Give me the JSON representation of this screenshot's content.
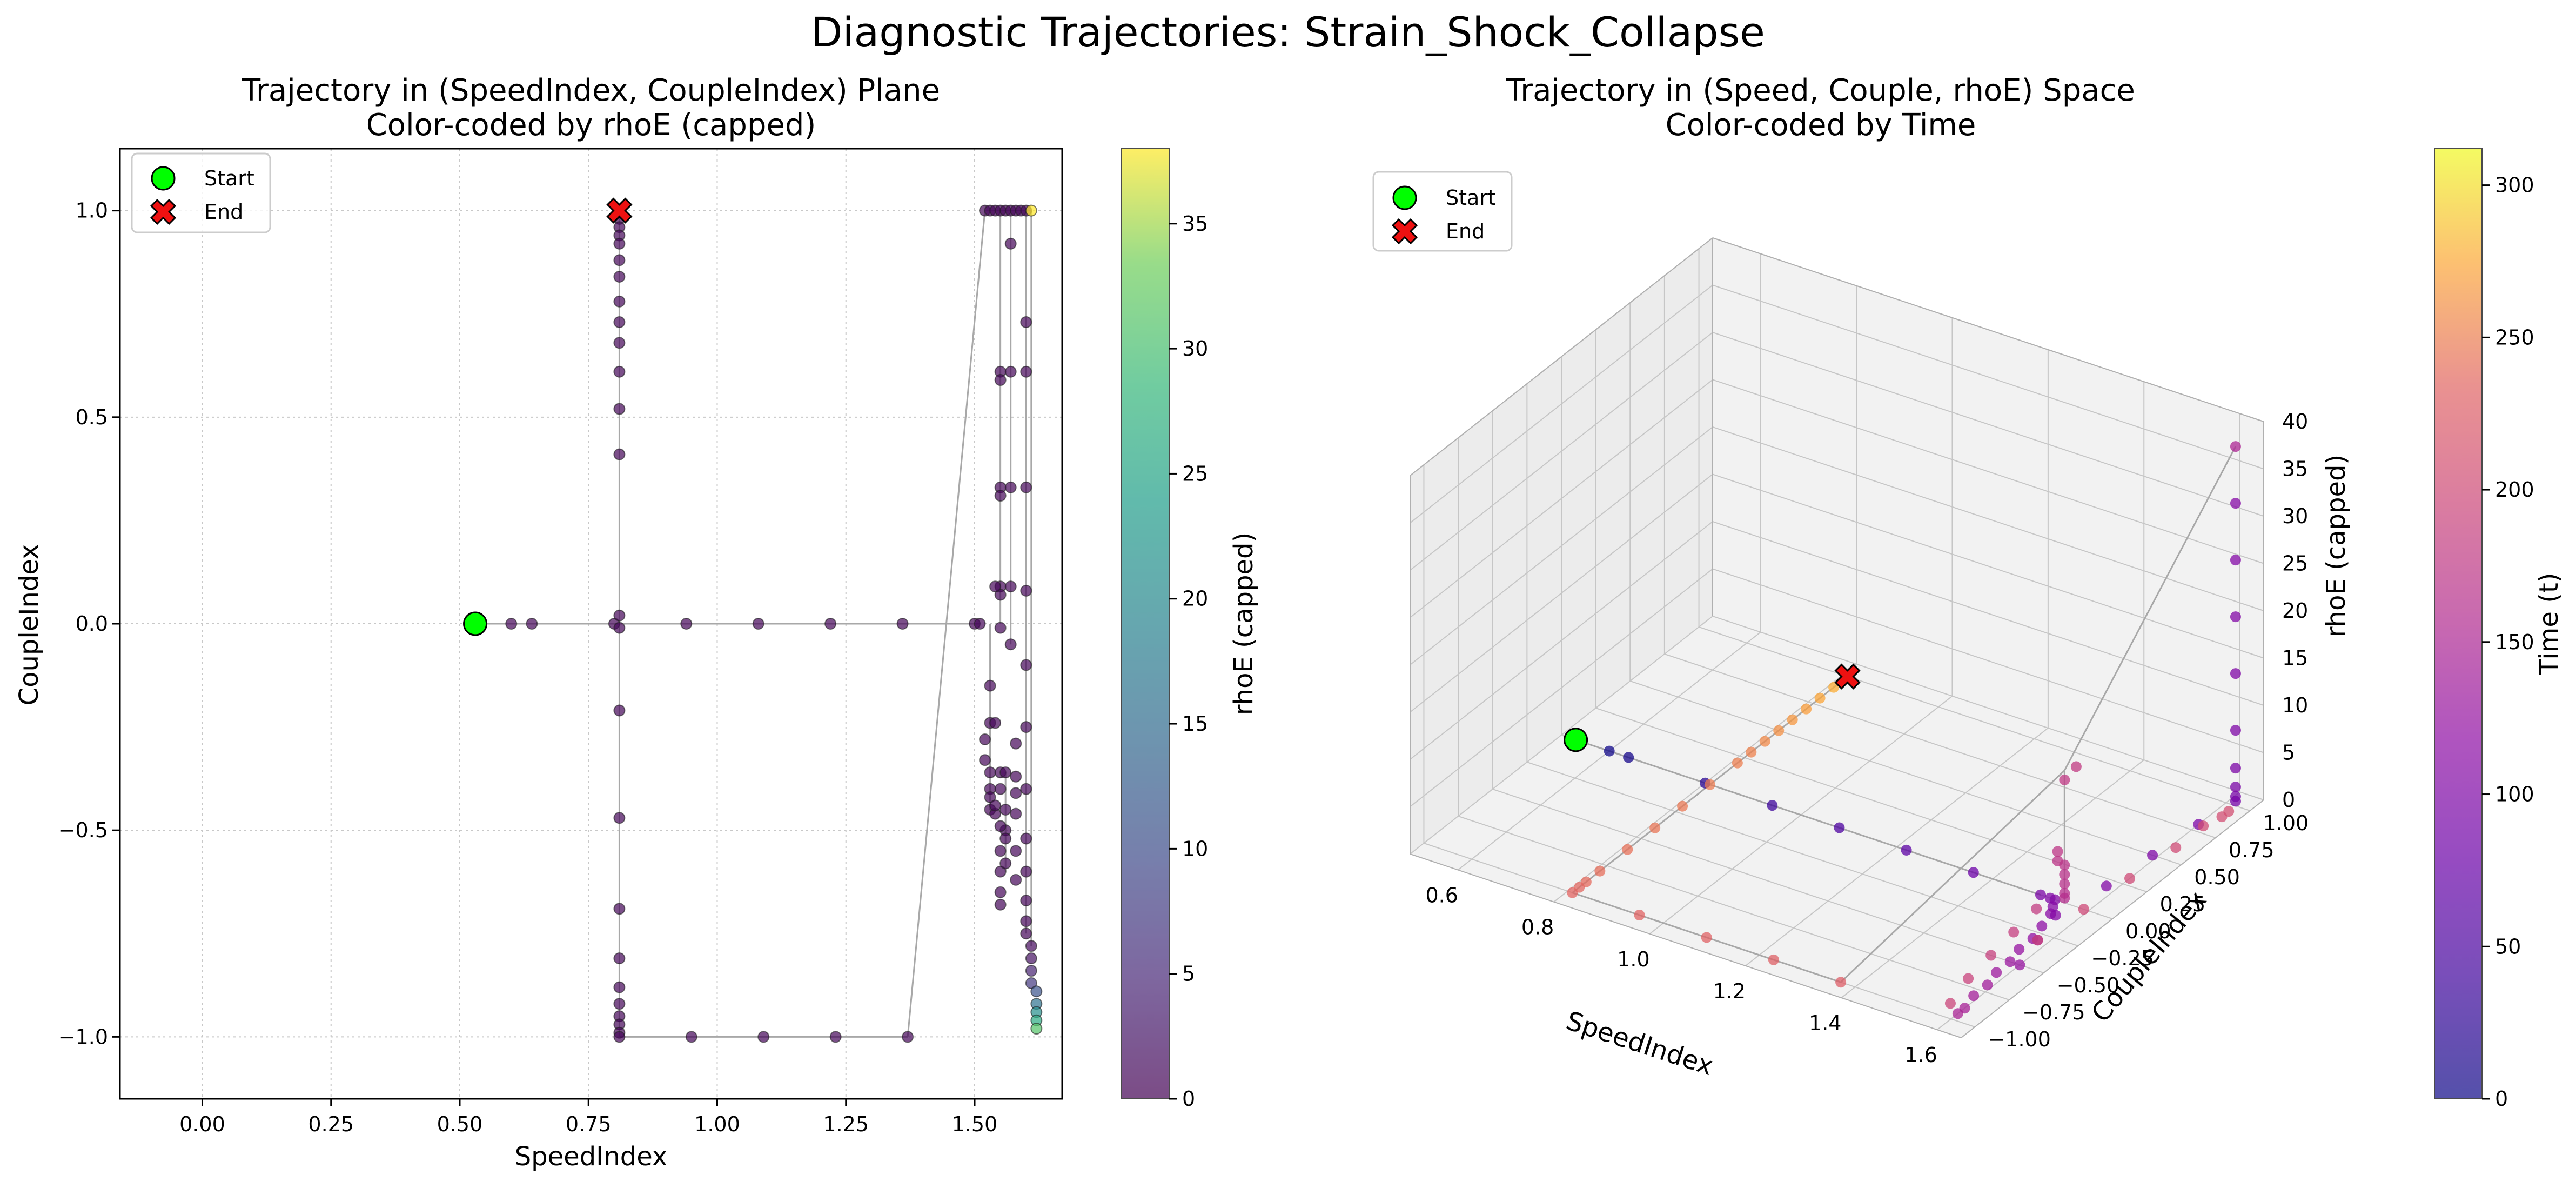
{
  "chart_data": {
    "suptitle": "Diagnostic Trajectories: Strain_Shock_Collapse",
    "panels": [
      {
        "type": "scatter",
        "title_line1": "Trajectory in (SpeedIndex, CoupleIndex) Plane",
        "title_line2": "Color-coded by rhoE (capped)",
        "xlabel": "SpeedIndex",
        "ylabel": "CoupleIndex",
        "xlim": [
          -0.16,
          1.67
        ],
        "ylim": [
          -1.15,
          1.15
        ],
        "xticks": [
          0.0,
          0.25,
          0.5,
          0.75,
          1.0,
          1.25,
          1.5
        ],
        "xtick_labels": [
          "0.00",
          "0.25",
          "0.50",
          "0.75",
          "1.00",
          "1.25",
          "1.50"
        ],
        "yticks": [
          -1.0,
          -0.5,
          0.0,
          0.5,
          1.0
        ],
        "ytick_labels": [
          "−1.0",
          "−0.5",
          "0.0",
          "0.5",
          "1.0"
        ],
        "grid": true,
        "legend": {
          "position": "upper-left",
          "entries": [
            "Start",
            "End"
          ]
        },
        "start": {
          "x": 0.53,
          "y": 0.0
        },
        "end": {
          "x": 0.81,
          "y": 1.0
        },
        "colorbar": {
          "label": "rhoE (capped)",
          "range": [
            0,
            38
          ],
          "ticks": [
            0,
            5,
            10,
            15,
            20,
            25,
            30,
            35
          ],
          "tick_labels": [
            "0",
            "5",
            "10",
            "15",
            "20",
            "25",
            "30",
            "35"
          ],
          "colormap": "viridis"
        },
        "points": [
          [
            0.53,
            0.0,
            0.5
          ],
          [
            0.6,
            0.0,
            0.5
          ],
          [
            0.64,
            0.0,
            0.5
          ],
          [
            0.8,
            0.0,
            0.5
          ],
          [
            0.81,
            -0.01,
            0.5
          ],
          [
            0.94,
            0.0,
            0.5
          ],
          [
            1.08,
            0.0,
            0.5
          ],
          [
            1.22,
            0.0,
            0.5
          ],
          [
            1.36,
            0.0,
            0.5
          ],
          [
            1.5,
            0.0,
            0.5
          ],
          [
            1.51,
            0.0,
            0.5
          ],
          [
            0.81,
            0.02,
            0.5
          ],
          [
            0.81,
            -0.21,
            0.5
          ],
          [
            0.81,
            -0.47,
            0.5
          ],
          [
            0.81,
            -0.69,
            0.5
          ],
          [
            0.81,
            -0.81,
            0.5
          ],
          [
            0.81,
            -0.88,
            0.5
          ],
          [
            0.81,
            -0.92,
            0.5
          ],
          [
            0.81,
            -0.95,
            0.5
          ],
          [
            0.81,
            -0.97,
            0.5
          ],
          [
            0.81,
            -0.99,
            0.5
          ],
          [
            0.81,
            -1.0,
            0.5
          ],
          [
            0.95,
            -1.0,
            0.5
          ],
          [
            1.09,
            -1.0,
            0.5
          ],
          [
            1.23,
            -1.0,
            0.5
          ],
          [
            1.37,
            -1.0,
            0.5
          ],
          [
            1.52,
            1.0,
            0.5
          ],
          [
            1.53,
            1.0,
            0.5
          ],
          [
            1.54,
            1.0,
            0.5
          ],
          [
            1.55,
            1.0,
            0.5
          ],
          [
            1.56,
            1.0,
            0.5
          ],
          [
            1.57,
            1.0,
            0.5
          ],
          [
            1.58,
            1.0,
            0.5
          ],
          [
            1.59,
            1.0,
            0.5
          ],
          [
            1.6,
            1.0,
            0.6
          ],
          [
            1.61,
            1.0,
            38.0
          ],
          [
            0.81,
            1.0,
            0.5
          ],
          [
            0.81,
            0.98,
            0.5
          ],
          [
            0.81,
            0.96,
            0.5
          ],
          [
            0.81,
            0.94,
            0.5
          ],
          [
            0.81,
            0.92,
            0.5
          ],
          [
            0.81,
            0.88,
            0.5
          ],
          [
            0.81,
            0.84,
            0.5
          ],
          [
            0.81,
            0.78,
            0.5
          ],
          [
            0.81,
            0.73,
            0.5
          ],
          [
            0.81,
            0.68,
            0.5
          ],
          [
            0.81,
            0.61,
            0.5
          ],
          [
            0.81,
            0.52,
            0.5
          ],
          [
            0.81,
            0.41,
            0.5
          ],
          [
            1.55,
            0.61,
            0.5
          ],
          [
            1.55,
            0.59,
            0.5
          ],
          [
            1.55,
            0.33,
            0.5
          ],
          [
            1.55,
            0.31,
            0.5
          ],
          [
            1.55,
            0.09,
            0.5
          ],
          [
            1.55,
            0.07,
            0.5
          ],
          [
            1.55,
            -0.01,
            0.5
          ],
          [
            1.54,
            0.09,
            0.5
          ],
          [
            1.53,
            -0.15,
            0.5
          ],
          [
            1.53,
            -0.24,
            0.5
          ],
          [
            1.54,
            -0.24,
            0.5
          ],
          [
            1.57,
            0.92,
            0.5
          ],
          [
            1.57,
            0.61,
            0.5
          ],
          [
            1.57,
            0.33,
            0.5
          ],
          [
            1.57,
            0.09,
            0.5
          ],
          [
            1.57,
            -0.05,
            0.5
          ],
          [
            1.58,
            -0.29,
            0.5
          ],
          [
            1.58,
            -0.37,
            0.5
          ],
          [
            1.58,
            -0.41,
            0.5
          ],
          [
            1.58,
            -0.46,
            0.5
          ],
          [
            1.58,
            -0.55,
            0.5
          ],
          [
            1.58,
            -0.62,
            0.5
          ],
          [
            1.52,
            -0.28,
            0.5
          ],
          [
            1.52,
            -0.33,
            0.5
          ],
          [
            1.53,
            -0.36,
            0.5
          ],
          [
            1.53,
            -0.4,
            0.5
          ],
          [
            1.53,
            -0.42,
            0.5
          ],
          [
            1.53,
            -0.45,
            0.5
          ],
          [
            1.54,
            -0.46,
            0.5
          ],
          [
            1.54,
            -0.44,
            0.5
          ],
          [
            1.55,
            -0.36,
            0.5
          ],
          [
            1.55,
            -0.4,
            0.5
          ],
          [
            1.56,
            -0.36,
            0.5
          ],
          [
            1.56,
            -0.45,
            0.5
          ],
          [
            1.56,
            -0.5,
            0.5
          ],
          [
            1.56,
            -0.52,
            0.5
          ],
          [
            1.55,
            -0.55,
            0.5
          ],
          [
            1.55,
            -0.6,
            0.5
          ],
          [
            1.55,
            -0.65,
            0.5
          ],
          [
            1.55,
            -0.68,
            0.5
          ],
          [
            1.56,
            -0.58,
            0.5
          ],
          [
            1.55,
            -0.49,
            0.5
          ],
          [
            1.6,
            0.73,
            0.5
          ],
          [
            1.6,
            0.61,
            0.5
          ],
          [
            1.6,
            0.33,
            0.5
          ],
          [
            1.6,
            0.08,
            0.5
          ],
          [
            1.6,
            -0.1,
            0.5
          ],
          [
            1.6,
            -0.25,
            0.5
          ],
          [
            1.6,
            -0.4,
            0.5
          ],
          [
            1.6,
            -0.52,
            0.5
          ],
          [
            1.6,
            -0.6,
            0.5
          ],
          [
            1.6,
            -0.67,
            0.5
          ],
          [
            1.6,
            -0.72,
            0.5
          ],
          [
            1.6,
            -0.75,
            0.5
          ],
          [
            1.61,
            -0.78,
            1.0
          ],
          [
            1.61,
            -0.81,
            2.0
          ],
          [
            1.61,
            -0.84,
            4.0
          ],
          [
            1.61,
            -0.87,
            7.0
          ],
          [
            1.62,
            -0.89,
            11.0
          ],
          [
            1.62,
            -0.92,
            16.0
          ],
          [
            1.62,
            -0.94,
            21.0
          ],
          [
            1.62,
            -0.96,
            26.0
          ],
          [
            1.62,
            -0.98,
            31.0
          ]
        ]
      },
      {
        "type": "scatter3d",
        "title_line1": "Trajectory in (Speed, Couple, rhoE) Space",
        "title_line2": "Color-coded by Time",
        "xlabel": "SpeedIndex",
        "ylabel": "CoupleIndex",
        "zlabel": "rhoE (capped)",
        "xlim": [
          0.5,
          1.65
        ],
        "ylim": [
          -1.1,
          1.1
        ],
        "zlim": [
          0,
          40
        ],
        "xticks": [
          0.6,
          0.8,
          1.0,
          1.2,
          1.4,
          1.6
        ],
        "xtick_labels": [
          "0.6",
          "0.8",
          "1.0",
          "1.2",
          "1.4",
          "1.6"
        ],
        "yticks": [
          -1.0,
          -0.75,
          -0.5,
          -0.25,
          0.0,
          0.25,
          0.5,
          0.75,
          1.0
        ],
        "ytick_labels": [
          "−1.00",
          "−0.75",
          "−0.50",
          "−0.25",
          "0.00",
          "0.25",
          "0.50",
          "0.75",
          "1.00"
        ],
        "zticks": [
          0,
          5,
          10,
          15,
          20,
          25,
          30,
          35,
          40
        ],
        "ztick_labels": [
          "0",
          "5",
          "10",
          "15",
          "20",
          "25",
          "30",
          "35",
          "40"
        ],
        "legend": {
          "position": "upper-left",
          "entries": [
            "Start",
            "End"
          ]
        },
        "start": {
          "x": 0.53,
          "y": 0.0,
          "z": 0
        },
        "end": {
          "x": 0.81,
          "y": 1.0,
          "z": 0
        },
        "colorbar": {
          "label": "Time (t)",
          "range": [
            0,
            312
          ],
          "ticks": [
            0,
            50,
            100,
            150,
            200,
            250,
            300
          ],
          "tick_labels": [
            "0",
            "50",
            "100",
            "150",
            "200",
            "250",
            "300"
          ],
          "colormap": "plasma"
        },
        "points": [
          [
            0.6,
            0.0,
            0,
            3
          ],
          [
            0.64,
            0.0,
            0,
            6
          ],
          [
            0.8,
            0.0,
            0,
            20
          ],
          [
            0.94,
            0.0,
            0,
            35
          ],
          [
            1.08,
            0.0,
            0,
            50
          ],
          [
            1.22,
            0.0,
            0,
            65
          ],
          [
            1.36,
            0.0,
            0,
            80
          ],
          [
            1.5,
            0.0,
            0,
            95
          ],
          [
            1.52,
            0.0,
            0,
            100
          ],
          [
            1.53,
            0.0,
            0,
            104
          ],
          [
            1.54,
            -0.05,
            0,
            108
          ],
          [
            1.55,
            -0.1,
            0,
            112
          ],
          [
            1.56,
            -0.2,
            0,
            116
          ],
          [
            1.57,
            -0.3,
            0,
            120
          ],
          [
            1.57,
            -0.4,
            0,
            124
          ],
          [
            1.58,
            -0.5,
            0,
            128
          ],
          [
            1.58,
            -0.6,
            0,
            132
          ],
          [
            1.59,
            -0.7,
            0,
            136
          ],
          [
            1.59,
            -0.8,
            0,
            140
          ],
          [
            1.6,
            -0.9,
            0,
            144
          ],
          [
            1.6,
            -0.95,
            0,
            148
          ],
          [
            1.6,
            -0.5,
            0,
            125
          ],
          [
            1.58,
            -0.3,
            0,
            110
          ],
          [
            1.56,
            -0.1,
            0,
            105
          ],
          [
            1.58,
            0.2,
            0,
            102
          ],
          [
            1.59,
            0.5,
            0,
            99
          ],
          [
            1.6,
            0.8,
            0,
            97
          ],
          [
            1.55,
            0.0,
            0.5,
            160
          ],
          [
            1.55,
            0.0,
            1.0,
            162
          ],
          [
            1.55,
            0.0,
            2.0,
            164
          ],
          [
            1.55,
            0.0,
            3.0,
            166
          ],
          [
            1.55,
            0.0,
            4.0,
            168
          ],
          [
            1.55,
            -0.05,
            5.0,
            170
          ],
          [
            1.55,
            -0.05,
            6.0,
            172
          ],
          [
            1.55,
            0.0,
            13.0,
            176
          ],
          [
            1.56,
            0.05,
            14.0,
            178
          ],
          [
            1.52,
            -0.1,
            0,
            180
          ],
          [
            1.53,
            -0.3,
            0,
            183
          ],
          [
            1.54,
            -0.5,
            0,
            186
          ],
          [
            1.55,
            -0.7,
            0,
            189
          ],
          [
            1.57,
            -0.9,
            0,
            192
          ],
          [
            1.58,
            -0.3,
            0,
            194
          ],
          [
            1.59,
            0.0,
            0,
            196
          ],
          [
            1.6,
            0.3,
            0,
            198
          ],
          [
            1.61,
            0.6,
            0,
            200
          ],
          [
            1.61,
            0.8,
            0,
            202
          ],
          [
            1.62,
            0.9,
            0,
            204
          ],
          [
            1.62,
            0.95,
            0,
            206
          ],
          [
            1.62,
            1.0,
            0.5,
            90
          ],
          [
            1.62,
            1.0,
            1.0,
            92
          ],
          [
            1.62,
            1.0,
            2.0,
            94
          ],
          [
            1.62,
            1.0,
            4.0,
            96
          ],
          [
            1.62,
            1.0,
            8.0,
            98
          ],
          [
            1.62,
            1.0,
            14.0,
            100
          ],
          [
            1.62,
            1.0,
            20.0,
            102
          ],
          [
            1.62,
            1.0,
            26.0,
            104
          ],
          [
            1.62,
            1.0,
            32.0,
            106
          ],
          [
            1.62,
            1.0,
            38.0,
            150
          ],
          [
            0.81,
            1.0,
            0,
            280
          ],
          [
            0.81,
            0.9,
            0,
            276
          ],
          [
            0.81,
            0.8,
            0,
            272
          ],
          [
            0.81,
            0.7,
            0,
            268
          ],
          [
            0.81,
            0.6,
            0,
            264
          ],
          [
            0.81,
            0.5,
            0,
            260
          ],
          [
            0.81,
            0.4,
            0,
            256
          ],
          [
            0.81,
            0.3,
            0,
            252
          ],
          [
            0.81,
            0.2,
            0,
            250
          ],
          [
            0.81,
            0.0,
            0,
            248
          ],
          [
            0.81,
            -0.2,
            0,
            246
          ],
          [
            0.81,
            -0.4,
            0,
            244
          ],
          [
            0.81,
            -0.6,
            0,
            242
          ],
          [
            0.81,
            -0.8,
            0,
            240
          ],
          [
            0.81,
            -0.9,
            0,
            238
          ],
          [
            0.81,
            -0.95,
            0,
            236
          ],
          [
            0.81,
            -1.0,
            0,
            234
          ],
          [
            0.95,
            -1.0,
            0,
            232
          ],
          [
            1.09,
            -1.0,
            0,
            230
          ],
          [
            1.23,
            -1.0,
            0,
            228
          ],
          [
            1.37,
            -1.0,
            0,
            226
          ]
        ]
      }
    ]
  }
}
